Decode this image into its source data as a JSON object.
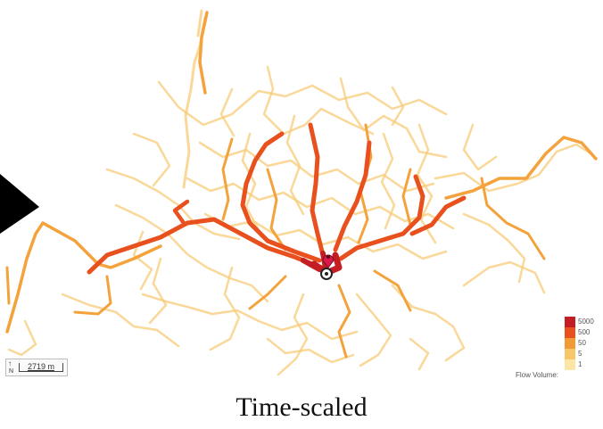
{
  "scale_bar": {
    "label": "2719 m",
    "north_label": "N"
  },
  "legend": {
    "title": "Flow Volume:",
    "items": [
      {
        "label": "5000",
        "color": "#c41e24"
      },
      {
        "label": "500",
        "color": "#e8501e"
      },
      {
        "label": "50",
        "color": "#f29a36"
      },
      {
        "label": "5",
        "color": "#f7c76a"
      },
      {
        "label": "1",
        "color": "#fbe6a6"
      }
    ]
  },
  "caption": "Time-scaled",
  "colors": {
    "low": "#f7cb77",
    "mid": "#f4a23c",
    "high": "#e8501e",
    "max": "#c41e24",
    "marker": "#d81b4a"
  }
}
